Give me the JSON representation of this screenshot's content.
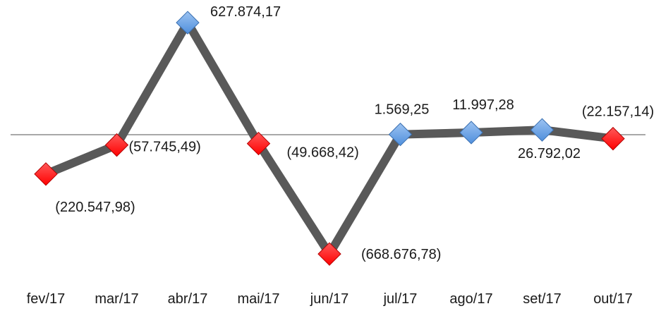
{
  "chart_data": {
    "type": "line",
    "title": "",
    "xlabel": "",
    "ylabel": "",
    "categories": [
      "fev/17",
      "mar/17",
      "abr/17",
      "mai/17",
      "jun/17",
      "jul/17",
      "ago/17",
      "set/17",
      "out/17"
    ],
    "series": [
      {
        "values": [
          -220547.98,
          -57745.49,
          627874.17,
          -49668.42,
          -668676.78,
          1569.25,
          11997.28,
          26792.02,
          -22157.14
        ],
        "labels": [
          "(220.547,98)",
          "(57.745,49)",
          "627.874,17",
          "(49.668,42)",
          "(668.676,78)",
          "1.569,25",
          "11.997,28",
          "26.792,02",
          "(22.157,14)"
        ],
        "line_color": "#595959",
        "positive_marker_color": "#4f8fdc",
        "negative_marker_color": "#ff0000"
      }
    ],
    "ylim": [
      -700000,
      650000
    ],
    "grid": false,
    "legend": "none",
    "zero_line": true
  }
}
